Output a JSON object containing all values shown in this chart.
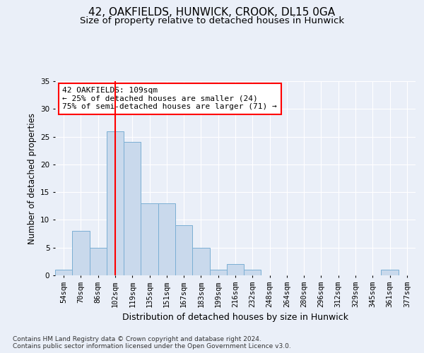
{
  "title_line1": "42, OAKFIELDS, HUNWICK, CROOK, DL15 0GA",
  "title_line2": "Size of property relative to detached houses in Hunwick",
  "xlabel": "Distribution of detached houses by size in Hunwick",
  "ylabel": "Number of detached properties",
  "footnote": "Contains HM Land Registry data © Crown copyright and database right 2024.\nContains public sector information licensed under the Open Government Licence v3.0.",
  "bin_labels": [
    "54sqm",
    "70sqm",
    "86sqm",
    "102sqm",
    "119sqm",
    "135sqm",
    "151sqm",
    "167sqm",
    "183sqm",
    "199sqm",
    "216sqm",
    "232sqm",
    "248sqm",
    "264sqm",
    "280sqm",
    "296sqm",
    "312sqm",
    "329sqm",
    "345sqm",
    "361sqm",
    "377sqm"
  ],
  "bar_values": [
    1,
    8,
    5,
    26,
    24,
    13,
    13,
    9,
    5,
    1,
    2,
    1,
    0,
    0,
    0,
    0,
    0,
    0,
    0,
    1,
    0
  ],
  "bar_color": "#c9d9ec",
  "bar_edgecolor": "#7bafd4",
  "vline_position": 3.5,
  "vline_color": "red",
  "annotation_text": "42 OAKFIELDS: 109sqm\n← 25% of detached houses are smaller (24)\n75% of semi-detached houses are larger (71) →",
  "annotation_box_color": "white",
  "annotation_box_edgecolor": "red",
  "ylim": [
    0,
    35
  ],
  "yticks": [
    0,
    5,
    10,
    15,
    20,
    25,
    30,
    35
  ],
  "background_color": "#eaeff8",
  "plot_background_color": "#eaeff8",
  "grid_color": "white",
  "title_fontsize": 11,
  "subtitle_fontsize": 9.5,
  "ylabel_fontsize": 8.5,
  "xlabel_fontsize": 9,
  "tick_fontsize": 7.5,
  "footnote_fontsize": 6.5,
  "annotation_fontsize": 8
}
